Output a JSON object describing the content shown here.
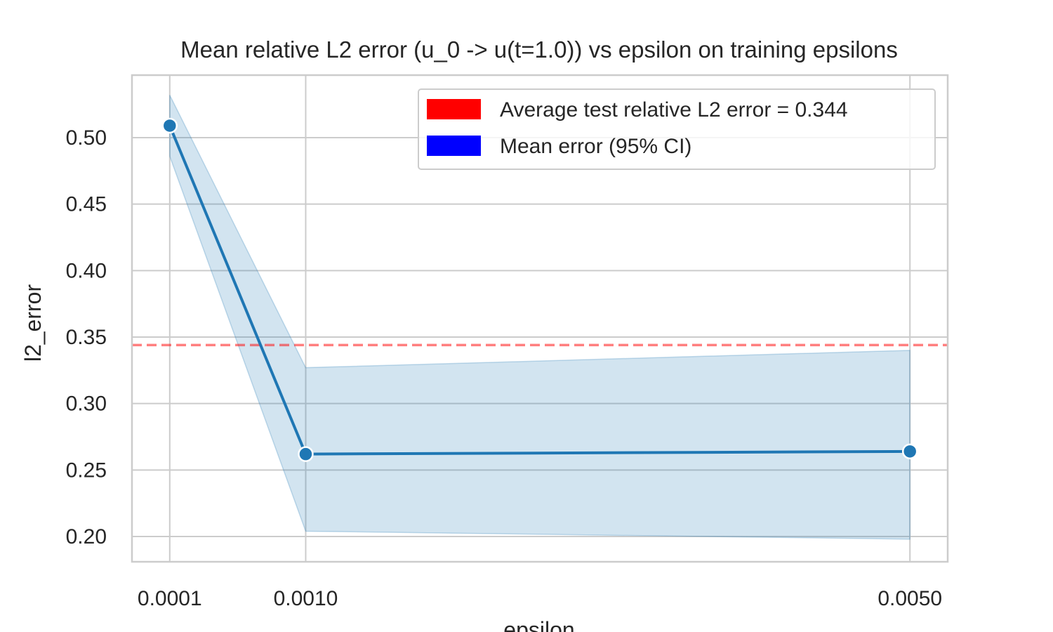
{
  "chart_data": {
    "type": "line",
    "title": "Mean relative L2 error (u_0 -> u(t=1.0)) vs epsilon on training epsilons",
    "xlabel": "epsilon",
    "ylabel": "l2_error",
    "x": [
      0.0001,
      0.001,
      0.005
    ],
    "x_tick_labels": [
      "0.0001",
      "0.0010",
      "0.0050"
    ],
    "y_ticks": [
      "0.20",
      "0.25",
      "0.30",
      "0.35",
      "0.40",
      "0.45",
      "0.50"
    ],
    "ylim": [
      0.181,
      0.547
    ],
    "xlim": [
      -0.00015,
      0.00525
    ],
    "grid": true,
    "legend_position": "top-right",
    "series": [
      {
        "name": "Mean error (95% CI)",
        "color": "#1f77b4",
        "legend_color": "#0000ff",
        "values": [
          0.509,
          0.262,
          0.264
        ],
        "ci_lower": [
          0.486,
          0.204,
          0.198
        ],
        "ci_upper": [
          0.532,
          0.327,
          0.34
        ]
      }
    ],
    "reference_line": {
      "name": "Average test relative L2 error = 0.344",
      "value": 0.344,
      "color": "#ff0000",
      "style": "dashed"
    }
  }
}
